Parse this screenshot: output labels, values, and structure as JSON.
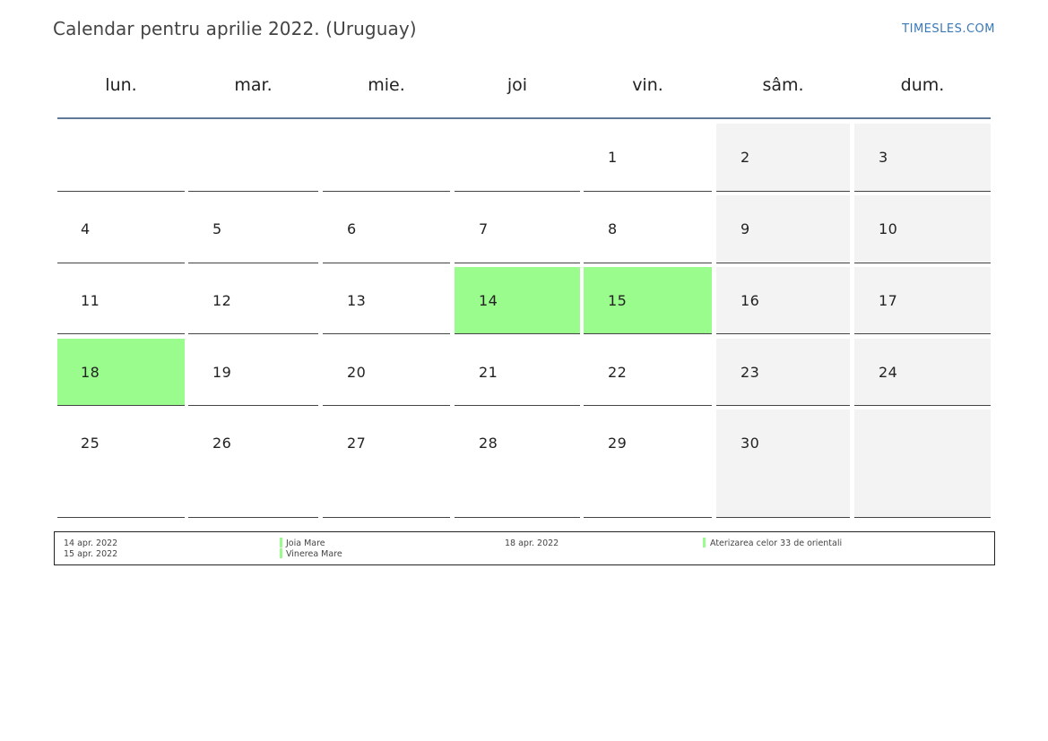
{
  "header": {
    "title": "Calendar pentru aprilie 2022. (Uruguay)",
    "site": "TIMESLES.COM"
  },
  "weekdays": [
    "lun.",
    "mar.",
    "mie.",
    "joi",
    "vin.",
    "sâm.",
    "dum."
  ],
  "weeks": [
    [
      "",
      "",
      "",
      "",
      "1",
      "2",
      "3"
    ],
    [
      "4",
      "5",
      "6",
      "7",
      "8",
      "9",
      "10"
    ],
    [
      "11",
      "12",
      "13",
      "14",
      "15",
      "16",
      "17"
    ],
    [
      "18",
      "19",
      "20",
      "21",
      "22",
      "23",
      "24"
    ],
    [
      "25",
      "26",
      "27",
      "28",
      "29",
      "30",
      ""
    ]
  ],
  "holiday_days": [
    "14",
    "15",
    "18"
  ],
  "colors": {
    "holiday": "#99fc8c",
    "weekend": "#f3f3f3",
    "rule": "#5f7a99",
    "link": "#3a78b8"
  },
  "legend": {
    "col1": {
      "dates": [
        "14 apr. 2022",
        "15 apr. 2022"
      ],
      "names": [
        "Joia Mare",
        "Vinerea Mare"
      ]
    },
    "col2": {
      "dates": [
        "18 apr. 2022"
      ],
      "names": [
        "Aterizarea celor 33 de orientali"
      ]
    }
  }
}
